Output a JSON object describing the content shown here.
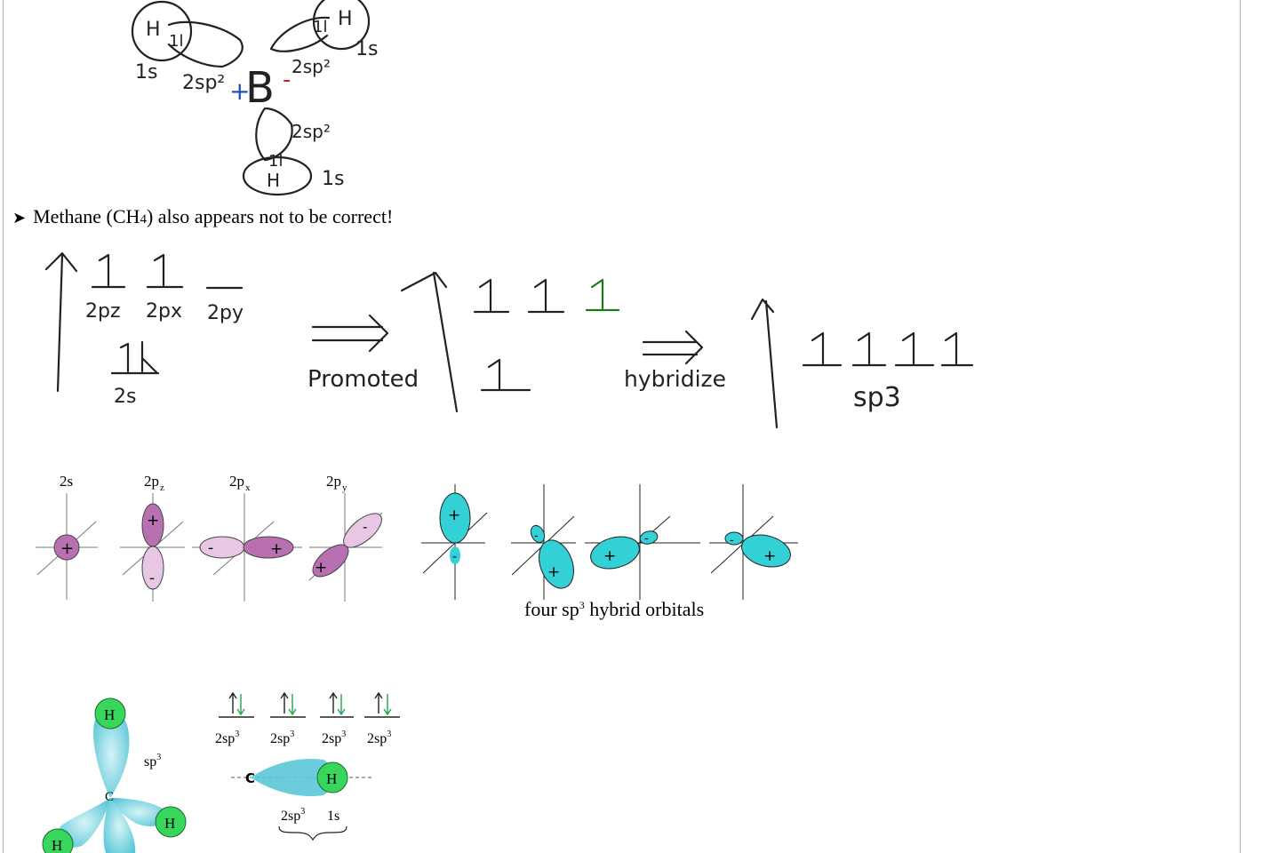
{
  "boron_sketch": {
    "h_top_left": "H",
    "h_top_right": "H",
    "h_bottom": "H",
    "boron": "B",
    "plus": "+",
    "minus": "-",
    "label_1s_left": "1s",
    "label_1s_right": "1s",
    "label_1s_bottom": "1s",
    "label_2sp2_left": "2sp²",
    "label_2sp2_right": "2sp²",
    "label_2sp2_bottom": "2sp²",
    "electron_pair": "1l"
  },
  "bullet": {
    "text_before": "Methane (CH",
    "subscript": "4",
    "text_after": ") also appears not to be correct!"
  },
  "energy_sketch": {
    "labels_ground": [
      "2pz",
      "2px",
      "2py"
    ],
    "label_2s": "2s",
    "promoted": "Promoted",
    "hybridize": "hybridize",
    "sp3": "sp3",
    "colors": {
      "ink": "#222222",
      "green_electron": "#1a7a1a"
    }
  },
  "orbital_figure": {
    "labels": {
      "s": "2s",
      "pz": "2p",
      "pz_sub": "z",
      "px": "2p",
      "px_sub": "x",
      "py": "2p",
      "py_sub": "y"
    },
    "signs": {
      "plus": "+",
      "minus": "-"
    },
    "caption_before": "four sp",
    "caption_sup": "3",
    "caption_after": " hybrid orbitals",
    "colors": {
      "p_orbital": "#c06fb8",
      "p_orbital_light": "#e8c7e4",
      "hybrid": "#33d0d6"
    }
  },
  "methane_figure": {
    "center_atom": "C",
    "hydrogen": "H",
    "sp3_label": "sp",
    "sp3_sup": "3",
    "colors": {
      "hydrogen": "#39d65c",
      "lobe": "#5bc8d8",
      "down_arrow": "#1fa64a"
    }
  },
  "bond_figure": {
    "orbital_labels": [
      "2sp",
      "2sp",
      "2sp",
      "2sp"
    ],
    "orbital_sup": "3",
    "atom_c": "C",
    "atom_h": "H",
    "bond_label_left": "2sp",
    "bond_label_sup": "3",
    "bond_label_right": "1s"
  }
}
